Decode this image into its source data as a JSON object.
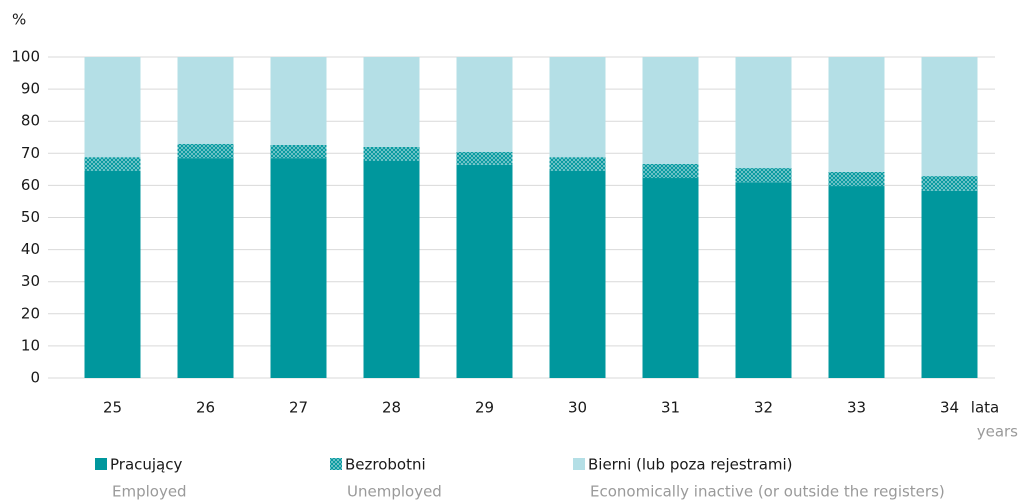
{
  "chart_data": {
    "type": "stacked_bar",
    "y_unit": "%",
    "x_label": "lata",
    "x_label_en": "years",
    "categories": [
      "25",
      "26",
      "27",
      "28",
      "29",
      "30",
      "31",
      "32",
      "33",
      "34"
    ],
    "series": [
      {
        "name": "Pracujący",
        "subname": "Employed",
        "color": "#00979d",
        "hatch": false,
        "values": [
          64.5,
          68.5,
          68.5,
          67.6,
          66.4,
          64.5,
          62.3,
          61.0,
          59.8,
          58.3
        ]
      },
      {
        "name": "Bezrobotni",
        "subname": "Unemployed",
        "color": "#3aa9ae",
        "hatch": true,
        "values": [
          4.3,
          4.4,
          4.1,
          4.4,
          4.0,
          4.3,
          4.4,
          4.4,
          4.4,
          4.6
        ]
      },
      {
        "name": "Bierni (lub poza rejestrami)",
        "subname": "Economically inactive (or outside the registers)",
        "color": "#b4dfe6",
        "hatch": false,
        "values": [
          31.2,
          27.1,
          27.4,
          28.0,
          29.6,
          31.2,
          33.3,
          34.6,
          35.8,
          37.1
        ]
      }
    ],
    "ylim": [
      0,
      100
    ],
    "yticks": [
      0,
      10,
      20,
      30,
      40,
      50,
      60,
      70,
      80,
      90,
      100
    ],
    "grid": true
  }
}
